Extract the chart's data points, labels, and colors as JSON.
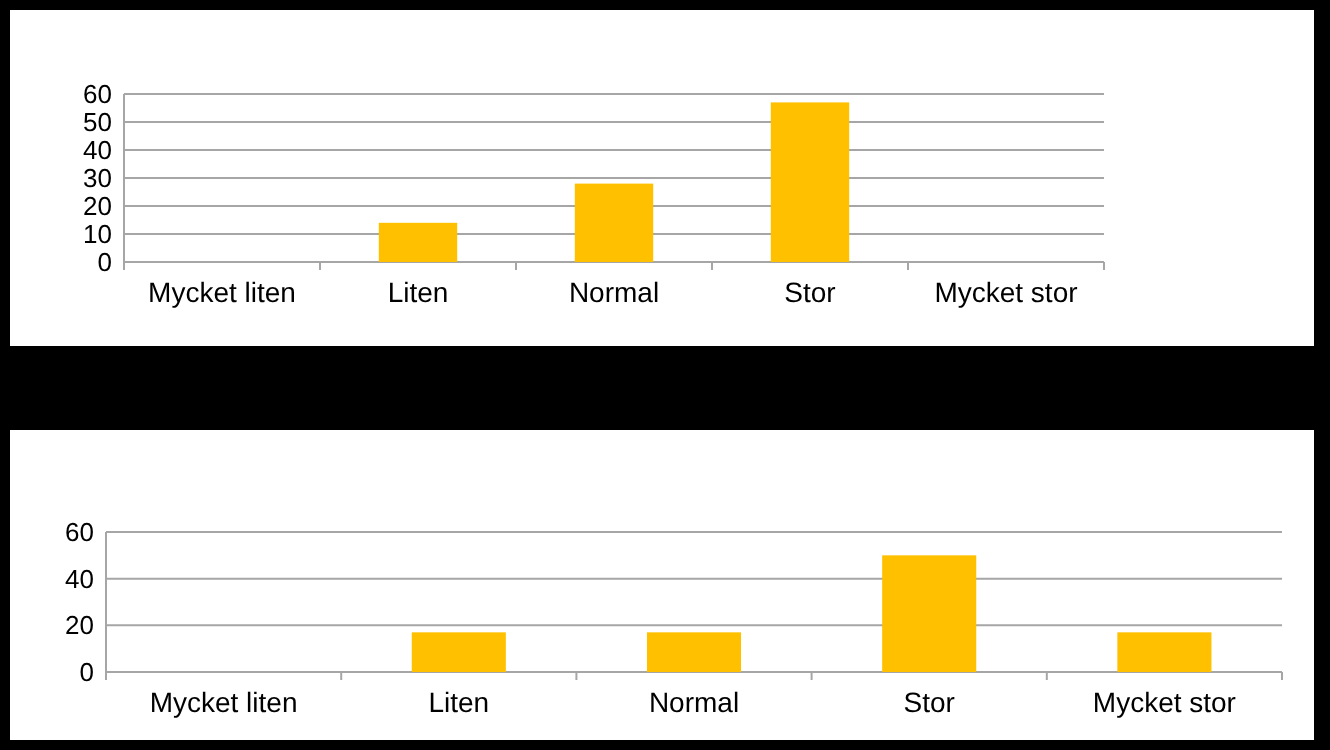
{
  "chart_data": [
    {
      "type": "bar",
      "categories": [
        "Mycket liten",
        "Liten",
        "Normal",
        "Stor",
        "Mycket stor"
      ],
      "values": [
        0,
        14,
        28,
        57,
        0
      ],
      "color": "#ffc000",
      "ylim": [
        0,
        60
      ],
      "yticks": [
        0,
        10,
        20,
        30,
        40,
        50,
        60
      ],
      "grid": "y"
    },
    {
      "type": "bar",
      "categories": [
        "Mycket liten",
        "Liten",
        "Normal",
        "Stor",
        "Mycket stor"
      ],
      "values": [
        0,
        17,
        17,
        50,
        17
      ],
      "color": "#ffc000",
      "ylim": [
        0,
        60
      ],
      "yticks": [
        0,
        20,
        40,
        60
      ],
      "grid": "y"
    }
  ]
}
